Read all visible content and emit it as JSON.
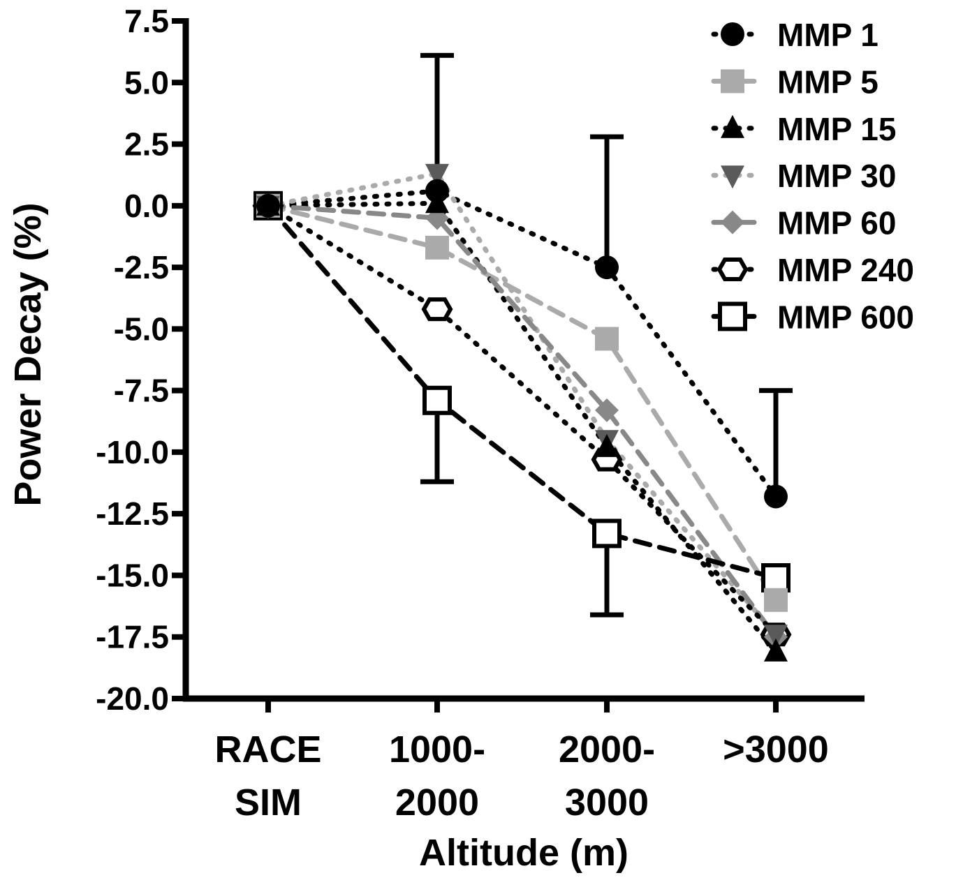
{
  "chart_data": {
    "type": "line",
    "xlabel": "Altitude (m)",
    "ylabel": "Power Decay (%)",
    "ylim": [
      -20.0,
      7.5
    ],
    "yticks": [
      "7.5",
      "5.0",
      "2.5",
      "0.0",
      "-2.5",
      "-5.0",
      "-7.5",
      "-10.0",
      "-12.5",
      "-15.0",
      "-17.5",
      "-20.0"
    ],
    "categories": [
      {
        "line1": "RACE",
        "line2": "SIM"
      },
      {
        "line1": "1000-",
        "line2": "2000"
      },
      {
        "line1": "2000-",
        "line2": "3000"
      },
      {
        "line1": ">3000",
        "line2": ""
      }
    ],
    "legend_position": "top-right",
    "series": [
      {
        "name": "MMP 1",
        "marker": "circle",
        "color": "#000000",
        "fill": "#000000",
        "dash": "dotted",
        "values": [
          0.0,
          0.6,
          -2.5,
          -11.8
        ],
        "error_plus": [
          null,
          5.5,
          5.3,
          4.3
        ],
        "error_minus": [
          null,
          null,
          null,
          null
        ]
      },
      {
        "name": "MMP 5",
        "marker": "square",
        "color": "#aaaaaa",
        "fill": "#aaaaaa",
        "dash": "dashed",
        "values": [
          0.0,
          -1.7,
          -5.4,
          -16.0
        ],
        "error_plus": [
          null,
          null,
          null,
          null
        ],
        "error_minus": [
          null,
          null,
          null,
          null
        ]
      },
      {
        "name": "MMP 15",
        "marker": "triangle-up",
        "color": "#000000",
        "fill": "#000000",
        "dash": "dotted",
        "values": [
          0.0,
          0.1,
          -9.8,
          -18.1
        ],
        "error_plus": [
          null,
          null,
          null,
          null
        ],
        "error_minus": [
          null,
          null,
          null,
          null
        ]
      },
      {
        "name": "MMP 30",
        "marker": "triangle-down",
        "color": "#aaaaaa",
        "fill": "#5a5a5a",
        "dash": "dotted",
        "values": [
          0.0,
          1.3,
          -9.5,
          -17.4
        ],
        "error_plus": [
          null,
          null,
          null,
          null
        ],
        "error_minus": [
          null,
          null,
          null,
          null
        ]
      },
      {
        "name": "MMP 60",
        "marker": "diamond",
        "color": "#888888",
        "fill": "#888888",
        "dash": "dashed",
        "values": [
          0.0,
          -0.5,
          -8.3,
          -17.5
        ],
        "error_plus": [
          null,
          null,
          null,
          null
        ],
        "error_minus": [
          null,
          null,
          null,
          null
        ]
      },
      {
        "name": "MMP 240",
        "marker": "hexagon-open",
        "color": "#000000",
        "fill": "#ffffff",
        "dash": "dotted",
        "values": [
          0.0,
          -4.2,
          -10.3,
          -17.4
        ],
        "error_plus": [
          null,
          null,
          null,
          null
        ],
        "error_minus": [
          null,
          null,
          null,
          null
        ]
      },
      {
        "name": "MMP 600",
        "marker": "square-open",
        "color": "#000000",
        "fill": "#ffffff",
        "dash": "dashed",
        "values": [
          0.0,
          -7.9,
          -13.3,
          -15.1
        ],
        "error_plus": [
          null,
          null,
          null,
          null
        ],
        "error_minus": [
          null,
          3.3,
          3.3,
          null
        ]
      }
    ]
  }
}
